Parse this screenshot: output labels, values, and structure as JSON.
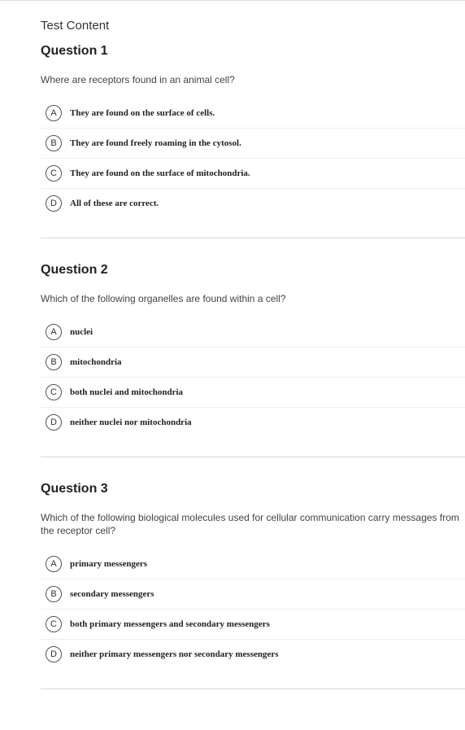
{
  "page_title": "Test Content",
  "questions": [
    {
      "title": "Question 1",
      "prompt": "Where are receptors found in an animal cell?",
      "options": [
        {
          "letter": "A",
          "text": "They are found on the surface of cells."
        },
        {
          "letter": "B",
          "text": "They are found freely roaming in the cytosol."
        },
        {
          "letter": "C",
          "text": "They are found on the surface of mitochondria."
        },
        {
          "letter": "D",
          "text": "All of these are correct."
        }
      ]
    },
    {
      "title": "Question 2",
      "prompt": "Which of the following organelles are found within a cell?",
      "options": [
        {
          "letter": "A",
          "text": "nuclei"
        },
        {
          "letter": "B",
          "text": "mitochondria"
        },
        {
          "letter": "C",
          "text": "both nuclei and mitochondria"
        },
        {
          "letter": "D",
          "text": "neither nuclei nor mitochondria"
        }
      ]
    },
    {
      "title": "Question 3",
      "prompt": "Which of the following biological molecules used for cellular communication carry messages from the receptor cell?",
      "options": [
        {
          "letter": "A",
          "text": "primary messengers"
        },
        {
          "letter": "B",
          "text": "secondary messengers"
        },
        {
          "letter": "C",
          "text": "both primary messengers and secondary messengers"
        },
        {
          "letter": "D",
          "text": "neither primary messengers nor secondary messengers"
        }
      ]
    }
  ],
  "colors": {
    "text": "#333333",
    "border": "#e0e0e0",
    "divider": "#d8d8d8",
    "option_border": "#f0f0f0",
    "circle_border": "#555555"
  }
}
